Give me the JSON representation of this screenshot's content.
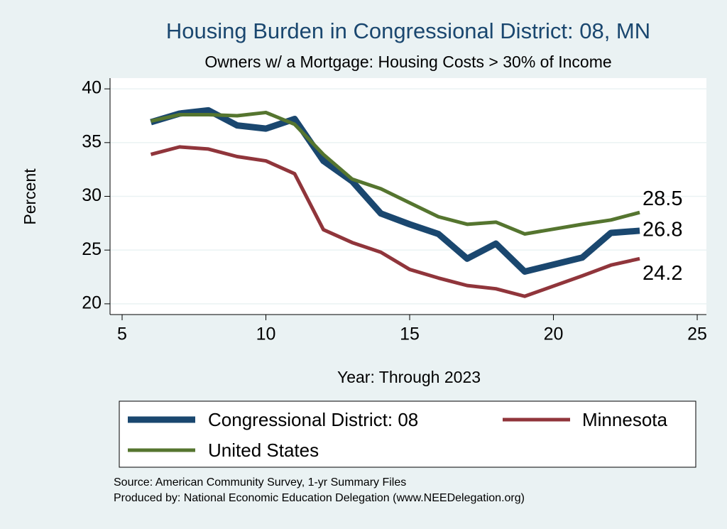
{
  "chart_data": {
    "type": "line",
    "title": "Housing Burden in Congressional District:  08, MN",
    "subtitle": "Owners w/ a Mortgage: Housing Costs > 30% of Income",
    "x_label": "Year: Through 2023",
    "y_label": "Percent",
    "x": [
      6,
      7,
      8,
      9,
      10,
      11,
      12,
      13,
      14,
      15,
      16,
      17,
      18,
      19,
      21,
      22,
      23
    ],
    "series": [
      {
        "name": "Congressional District:  08",
        "color": "#1a476f",
        "width": 9,
        "values": [
          36.9,
          37.7,
          38.0,
          36.6,
          36.3,
          37.2,
          33.3,
          31.4,
          28.4,
          27.4,
          26.5,
          24.2,
          25.6,
          23.0,
          24.3,
          26.6,
          26.8
        ]
      },
      {
        "name": "Minnesota",
        "color": "#90353b",
        "width": 5,
        "values": [
          33.9,
          34.6,
          34.4,
          33.7,
          33.3,
          32.1,
          26.9,
          25.7,
          24.8,
          23.2,
          22.4,
          21.7,
          21.4,
          20.7,
          22.6,
          23.6,
          24.2
        ]
      },
      {
        "name": "United States",
        "color": "#55752f",
        "width": 5,
        "values": [
          37.0,
          37.6,
          37.6,
          37.5,
          37.8,
          36.7,
          33.9,
          31.6,
          30.7,
          29.4,
          28.1,
          27.4,
          27.6,
          26.5,
          27.4,
          27.8,
          28.5
        ]
      }
    ],
    "xlim": [
      4.58,
      25.32
    ],
    "ylim": [
      19.0,
      41.0
    ],
    "xticks": [
      5,
      10,
      15,
      20,
      25
    ],
    "yticks": [
      20,
      25,
      30,
      35,
      40
    ],
    "grid": true,
    "notes": [
      "Source: American Community Survey, 1-yr Summary Files",
      "Produced by: National Economic Education Delegation (www.NEEDelegation.org)"
    ]
  }
}
